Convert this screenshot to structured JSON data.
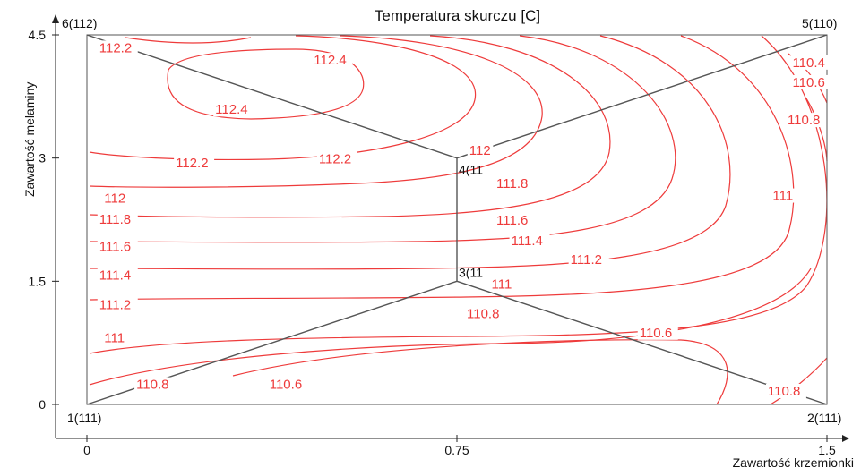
{
  "chart_data": {
    "type": "contour",
    "title": "Temperatura skurczu [C]",
    "xlabel": "Zawartość krzemionki",
    "ylabel": "Zawartość melaminy",
    "xlim": [
      0,
      1.5
    ],
    "ylim": [
      0,
      4.5
    ],
    "x_ticks": [
      "0",
      "0.75",
      "1.5"
    ],
    "y_ticks": [
      "0",
      "1.5",
      "3",
      "4.5"
    ],
    "contour_color": "#ee3b3b",
    "design_line_color": "#555555",
    "design_points": [
      {
        "label": "1(111)",
        "x": 0,
        "y": 0
      },
      {
        "label": "2(111)",
        "x": 1.5,
        "y": 0
      },
      {
        "label": "3(11",
        "x": 0.75,
        "y": 1.5
      },
      {
        "label": "4(11",
        "x": 0.75,
        "y": 3
      },
      {
        "label": "5(110)",
        "x": 1.5,
        "y": 4.5
      },
      {
        "label": "6(112)",
        "x": 0,
        "y": 4.5
      }
    ],
    "contour_levels": [
      "110.4",
      "110.6",
      "110.8",
      "111",
      "111.2",
      "111.4",
      "111.6",
      "111.8",
      "112",
      "112.2",
      "112.4"
    ],
    "contour_labels": [
      {
        "text": "112.2",
        "x": 0.025,
        "y": 4.3
      },
      {
        "text": "112.4",
        "x": 0.46,
        "y": 4.15
      },
      {
        "text": "112.4",
        "x": 0.26,
        "y": 3.55
      },
      {
        "text": "112.2",
        "x": 0.18,
        "y": 2.9
      },
      {
        "text": "112.2",
        "x": 0.47,
        "y": 2.95
      },
      {
        "text": "112",
        "x": 0.775,
        "y": 3.05
      },
      {
        "text": "111.8",
        "x": 0.83,
        "y": 2.65
      },
      {
        "text": "111.6",
        "x": 0.83,
        "y": 2.2
      },
      {
        "text": "111.4",
        "x": 0.86,
        "y": 1.95
      },
      {
        "text": "111.2",
        "x": 0.98,
        "y": 1.72
      },
      {
        "text": "111",
        "x": 0.82,
        "y": 1.42
      },
      {
        "text": "110.8",
        "x": 0.77,
        "y": 1.06
      },
      {
        "text": "110.6",
        "x": 1.12,
        "y": 0.83
      },
      {
        "text": "110.8",
        "x": 0.1,
        "y": 0.2
      },
      {
        "text": "110.6",
        "x": 0.37,
        "y": 0.2
      },
      {
        "text": "110.8",
        "x": 1.38,
        "y": 0.12
      },
      {
        "text": "112",
        "x": 0.035,
        "y": 2.47
      },
      {
        "text": "111.8",
        "x": 0.025,
        "y": 2.21
      },
      {
        "text": "111.6",
        "x": 0.025,
        "y": 1.88
      },
      {
        "text": "111.4",
        "x": 0.025,
        "y": 1.53
      },
      {
        "text": "111.2",
        "x": 0.025,
        "y": 1.17
      },
      {
        "text": "111",
        "x": 0.035,
        "y": 0.77
      },
      {
        "text": "111",
        "x": 1.39,
        "y": 2.5
      },
      {
        "text": "110.8",
        "x": 1.42,
        "y": 3.42
      },
      {
        "text": "110.6",
        "x": 1.43,
        "y": 3.88
      },
      {
        "text": "110.4",
        "x": 1.43,
        "y": 4.12
      }
    ]
  }
}
